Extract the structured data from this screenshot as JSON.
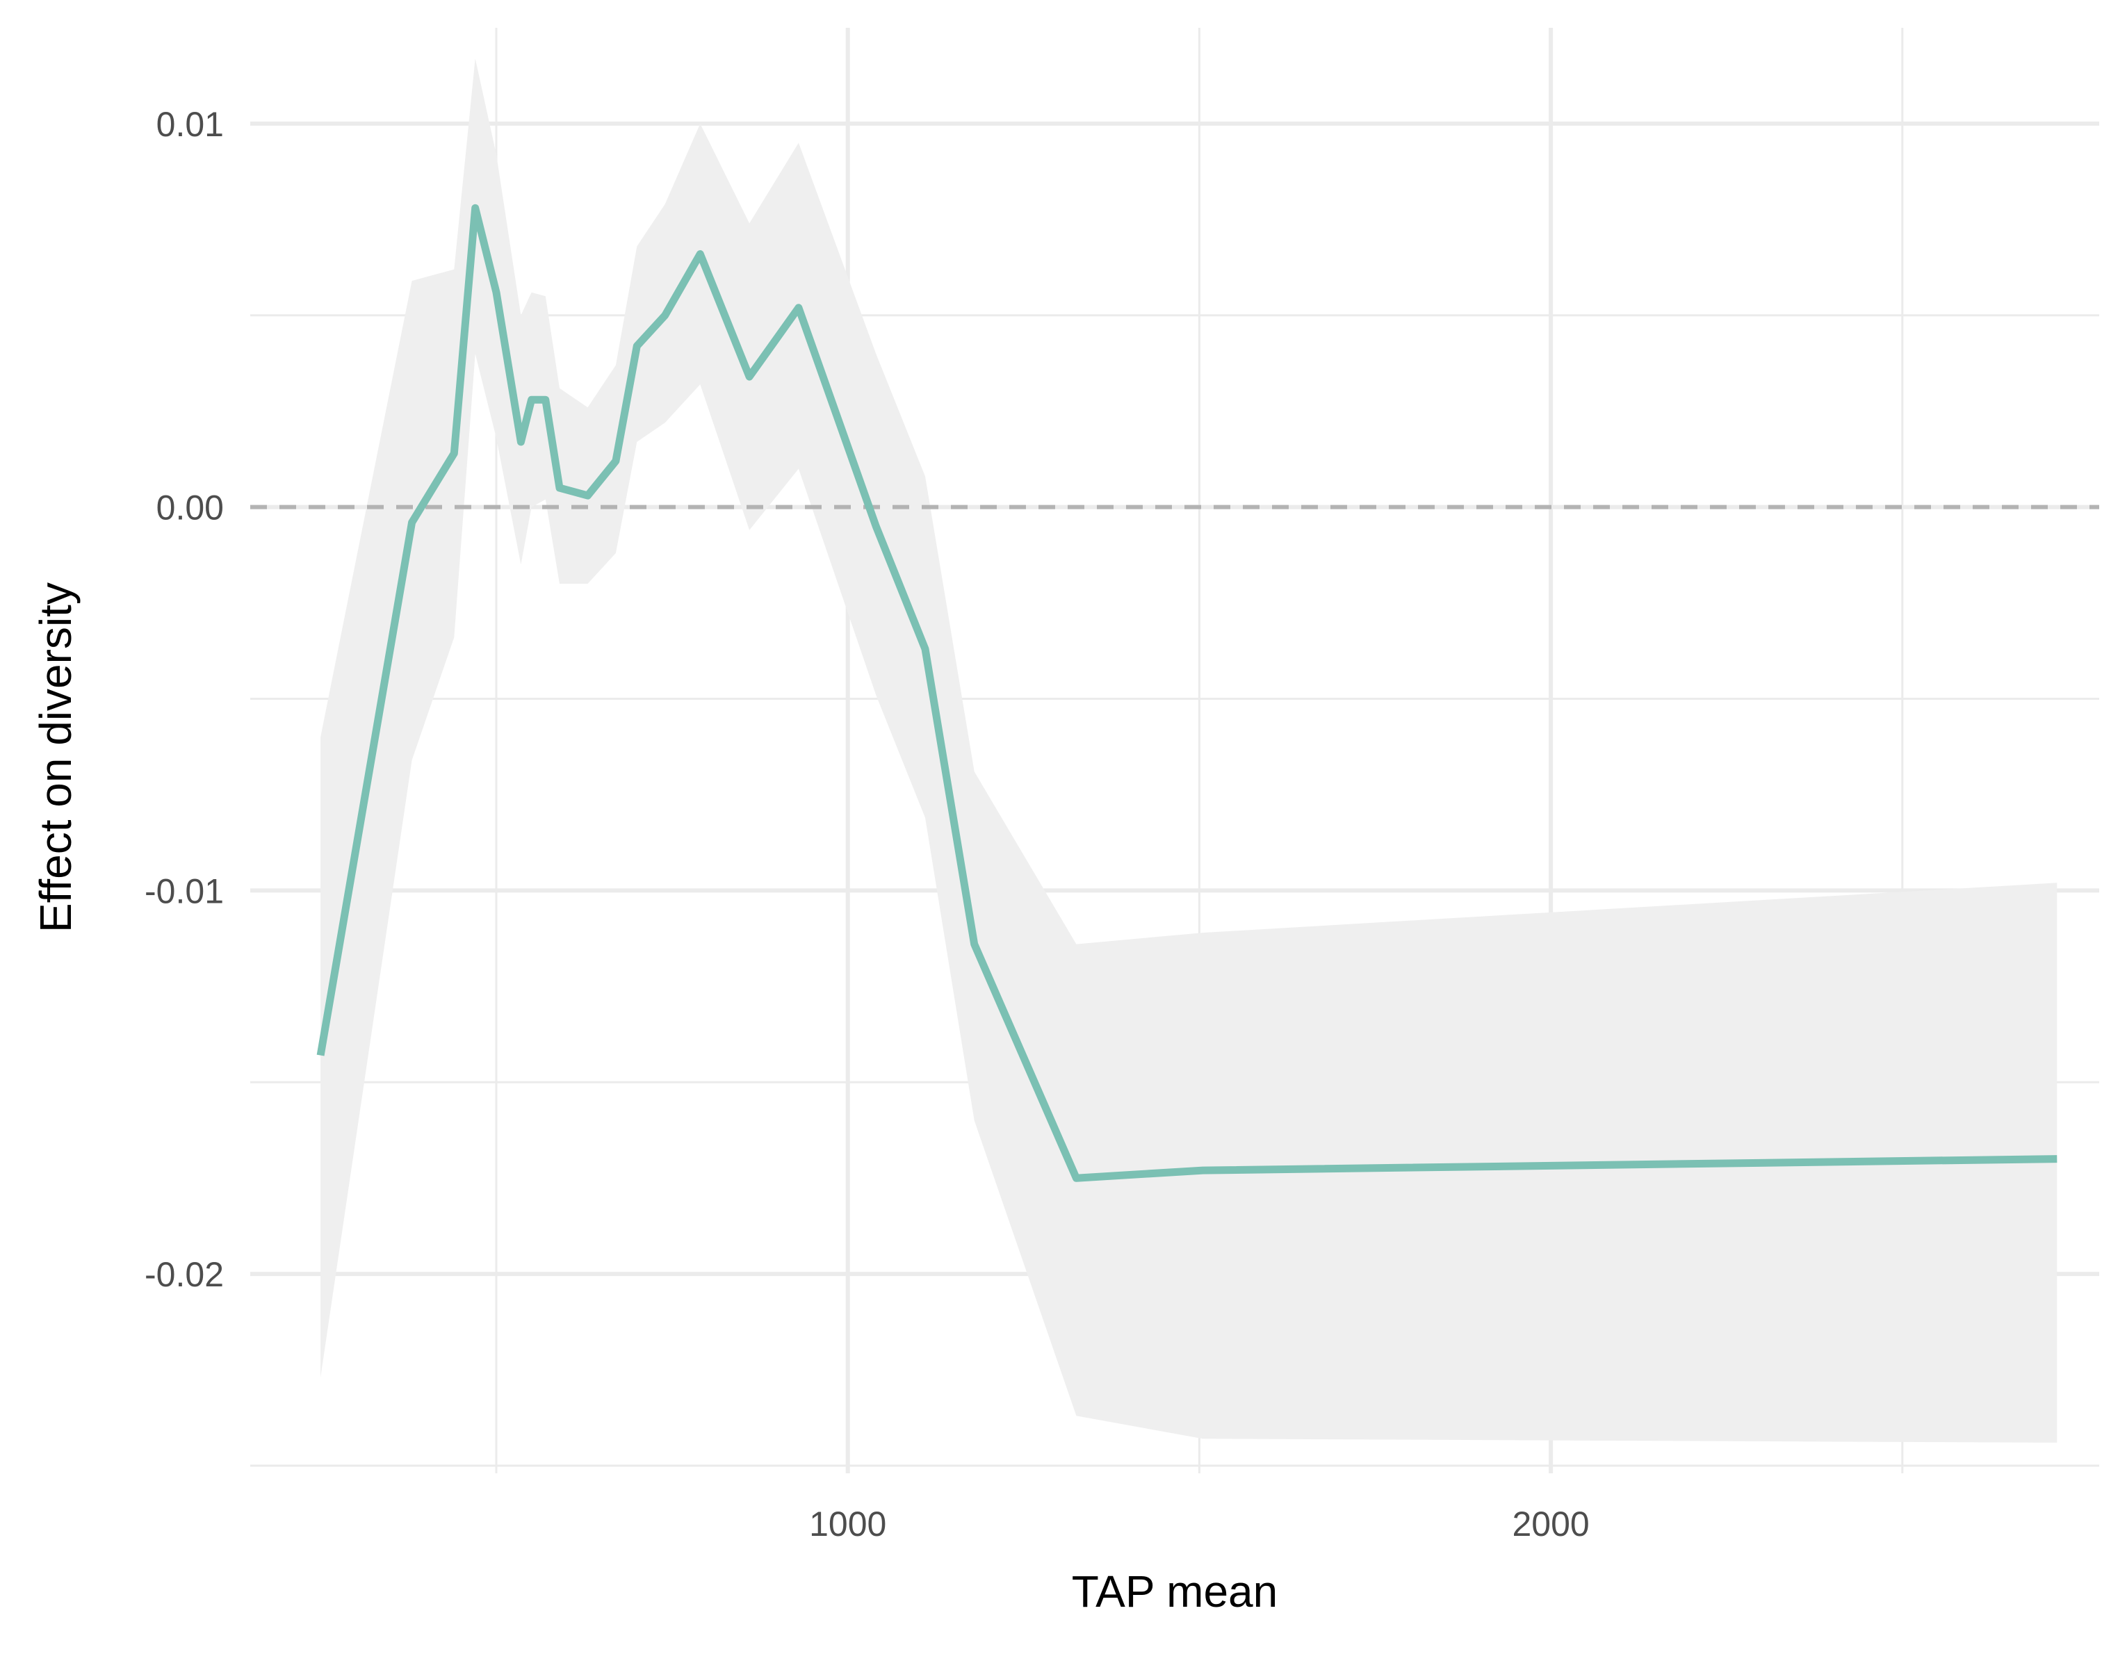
{
  "chart_data": {
    "type": "line",
    "xlabel": "TAP mean",
    "ylabel": "Effect on diversity",
    "xlim": [
      150,
      2780
    ],
    "ylim": [
      -0.0252,
      0.0125
    ],
    "x_ticks": [
      {
        "value": 1000,
        "label": "1000"
      },
      {
        "value": 2000,
        "label": "2000"
      }
    ],
    "x_minor_ticks": [
      500,
      1500,
      2500
    ],
    "y_ticks": [
      {
        "value": 0.01,
        "label": "0.01"
      },
      {
        "value": 0.0,
        "label": "0.00"
      },
      {
        "value": -0.01,
        "label": "-0.01"
      },
      {
        "value": -0.02,
        "label": "-0.02"
      }
    ],
    "y_minor_ticks": [
      0.005,
      -0.005,
      -0.015,
      -0.025
    ],
    "grid": true,
    "reference_line": {
      "y": 0,
      "style": "dashed"
    },
    "series": [
      {
        "x": [
          250,
          380,
          440,
          470,
          500,
          535,
          550,
          570,
          590,
          630,
          670,
          700,
          740,
          790,
          860,
          930,
          1040,
          1110,
          1180,
          1325,
          1505,
          2720
        ],
        "y": [
          -0.0143,
          -0.0004,
          0.0014,
          0.0078,
          0.0056,
          0.0017,
          0.0028,
          0.0028,
          0.0005,
          0.0003,
          0.0012,
          0.0042,
          0.005,
          0.0066,
          0.0034,
          0.0052,
          -0.0005,
          -0.0037,
          -0.0114,
          -0.0175,
          -0.0173,
          -0.017
        ],
        "lower": [
          -0.0227,
          -0.0066,
          -0.0034,
          0.004,
          0.0018,
          -0.0015,
          0.0,
          0.0002,
          -0.002,
          -0.002,
          -0.0012,
          0.0017,
          0.0022,
          0.0032,
          -0.0006,
          0.001,
          -0.0049,
          -0.0081,
          -0.016,
          -0.0237,
          -0.0243,
          -0.0244
        ],
        "upper": [
          -0.006,
          0.0059,
          0.0062,
          0.0117,
          0.0092,
          0.005,
          0.0056,
          0.0055,
          0.0031,
          0.0026,
          0.0037,
          0.0068,
          0.0079,
          0.01,
          0.0074,
          0.0095,
          0.004,
          0.0008,
          -0.0069,
          -0.0114,
          -0.0111,
          -0.0098
        ],
        "color": "#7bc0b3",
        "band_color": "#efefef"
      }
    ]
  }
}
